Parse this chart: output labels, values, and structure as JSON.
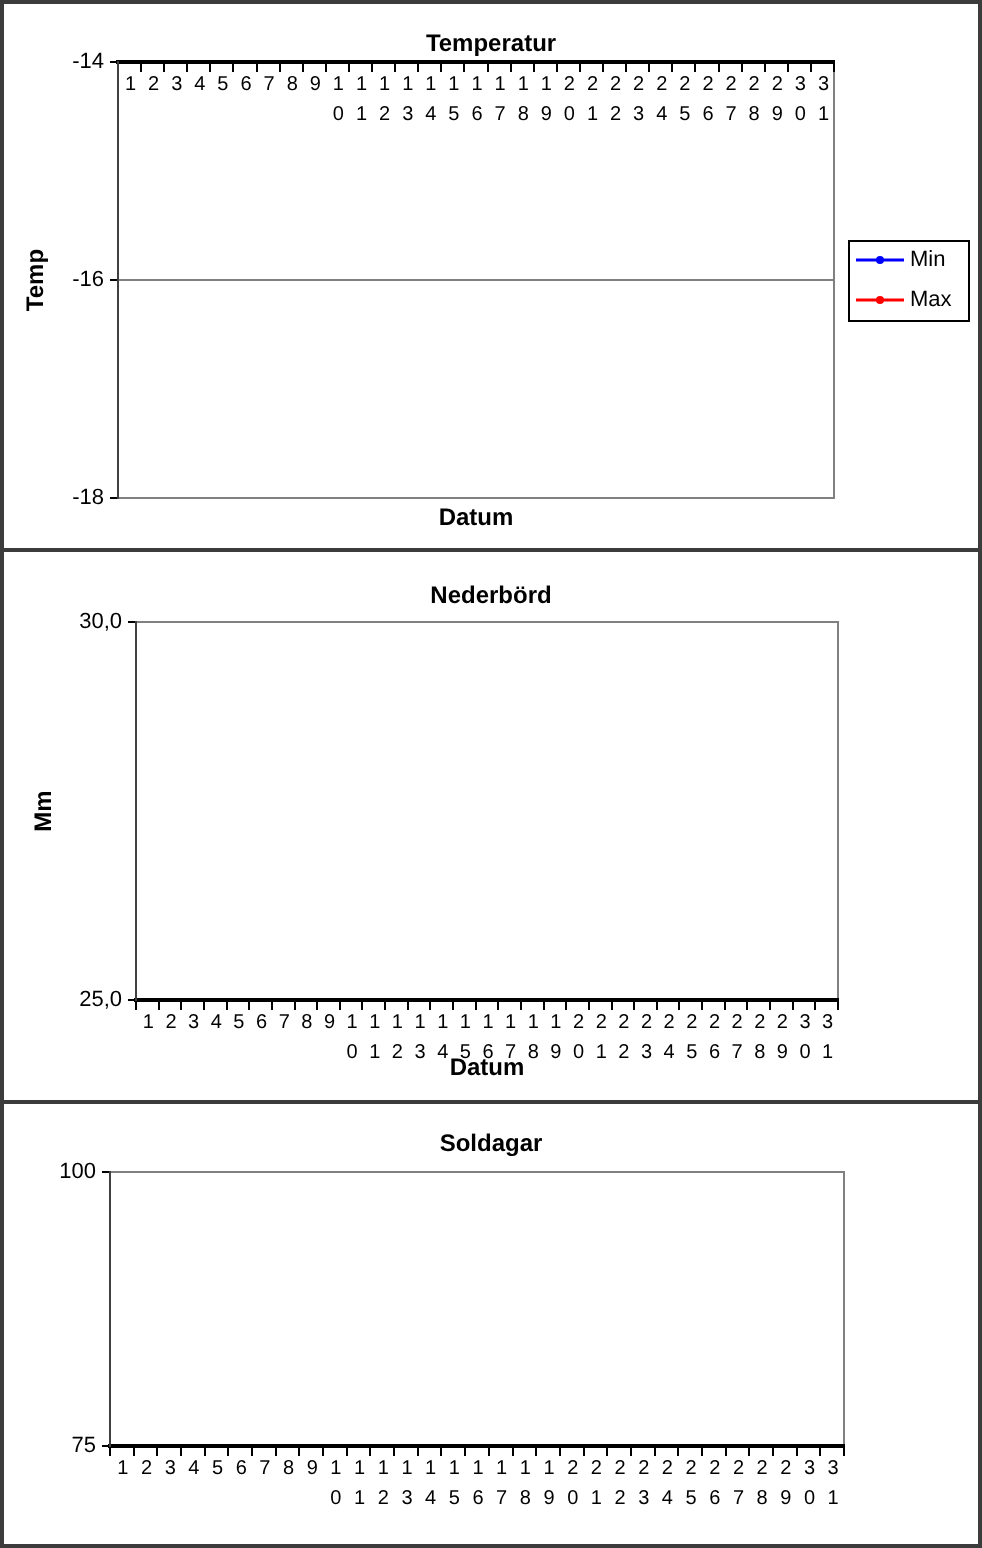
{
  "chart_data": [
    {
      "type": "line",
      "title": "Temperatur",
      "xlabel": "Datum",
      "ylabel": "Temp",
      "categories": [
        "1",
        "2",
        "3",
        "4",
        "5",
        "6",
        "7",
        "8",
        "9",
        "10",
        "11",
        "12",
        "13",
        "14",
        "15",
        "16",
        "17",
        "18",
        "19",
        "20",
        "21",
        "22",
        "23",
        "24",
        "25",
        "26",
        "27",
        "28",
        "29",
        "30",
        "31"
      ],
      "series": [
        {
          "name": "Min",
          "color": "#0000ff",
          "values": [
            null,
            null,
            null,
            null,
            null,
            null,
            null,
            null,
            null,
            null,
            null,
            null,
            null,
            null,
            null,
            null,
            null,
            null,
            null,
            null,
            null,
            null,
            null,
            null,
            null,
            null,
            null,
            null,
            null,
            null,
            null
          ]
        },
        {
          "name": "Max",
          "color": "#ff0000",
          "values": [
            null,
            null,
            null,
            null,
            null,
            null,
            null,
            null,
            null,
            null,
            null,
            null,
            null,
            null,
            null,
            null,
            null,
            null,
            null,
            null,
            null,
            null,
            null,
            null,
            null,
            null,
            null,
            null,
            null,
            null,
            null
          ]
        }
      ],
      "ylim": [
        -18,
        -14
      ],
      "yticks": [
        -18,
        -16,
        -14
      ],
      "grid": "y",
      "legend": "right",
      "marker": "circle"
    },
    {
      "type": "line",
      "title": "Nederbörd",
      "xlabel": "Datum",
      "ylabel": "Mm",
      "categories": [
        "1",
        "2",
        "3",
        "4",
        "5",
        "6",
        "7",
        "8",
        "9",
        "10",
        "11",
        "12",
        "13",
        "14",
        "15",
        "16",
        "17",
        "18",
        "19",
        "20",
        "21",
        "22",
        "23",
        "24",
        "25",
        "26",
        "27",
        "28",
        "29",
        "30",
        "31"
      ],
      "values": [
        null,
        null,
        null,
        null,
        null,
        null,
        null,
        null,
        null,
        null,
        null,
        null,
        null,
        null,
        null,
        null,
        null,
        null,
        null,
        null,
        null,
        null,
        null,
        null,
        null,
        null,
        null,
        null,
        null,
        null,
        null
      ],
      "ylim": [
        25,
        30
      ],
      "yticks": [
        {
          "value": 25,
          "label": "25,0"
        },
        {
          "value": 30,
          "label": "30,0"
        }
      ]
    },
    {
      "type": "line",
      "title": "Soldagar",
      "categories": [
        "1",
        "2",
        "3",
        "4",
        "5",
        "6",
        "7",
        "8",
        "9",
        "10",
        "11",
        "12",
        "13",
        "14",
        "15",
        "16",
        "17",
        "18",
        "19",
        "20",
        "21",
        "22",
        "23",
        "24",
        "25",
        "26",
        "27",
        "28",
        "29",
        "30",
        "31"
      ],
      "values": [
        null,
        null,
        null,
        null,
        null,
        null,
        null,
        null,
        null,
        null,
        null,
        null,
        null,
        null,
        null,
        null,
        null,
        null,
        null,
        null,
        null,
        null,
        null,
        null,
        null,
        null,
        null,
        null,
        null,
        null,
        null
      ],
      "ylim": [
        75,
        100
      ],
      "yticks": [
        75,
        100
      ]
    }
  ]
}
